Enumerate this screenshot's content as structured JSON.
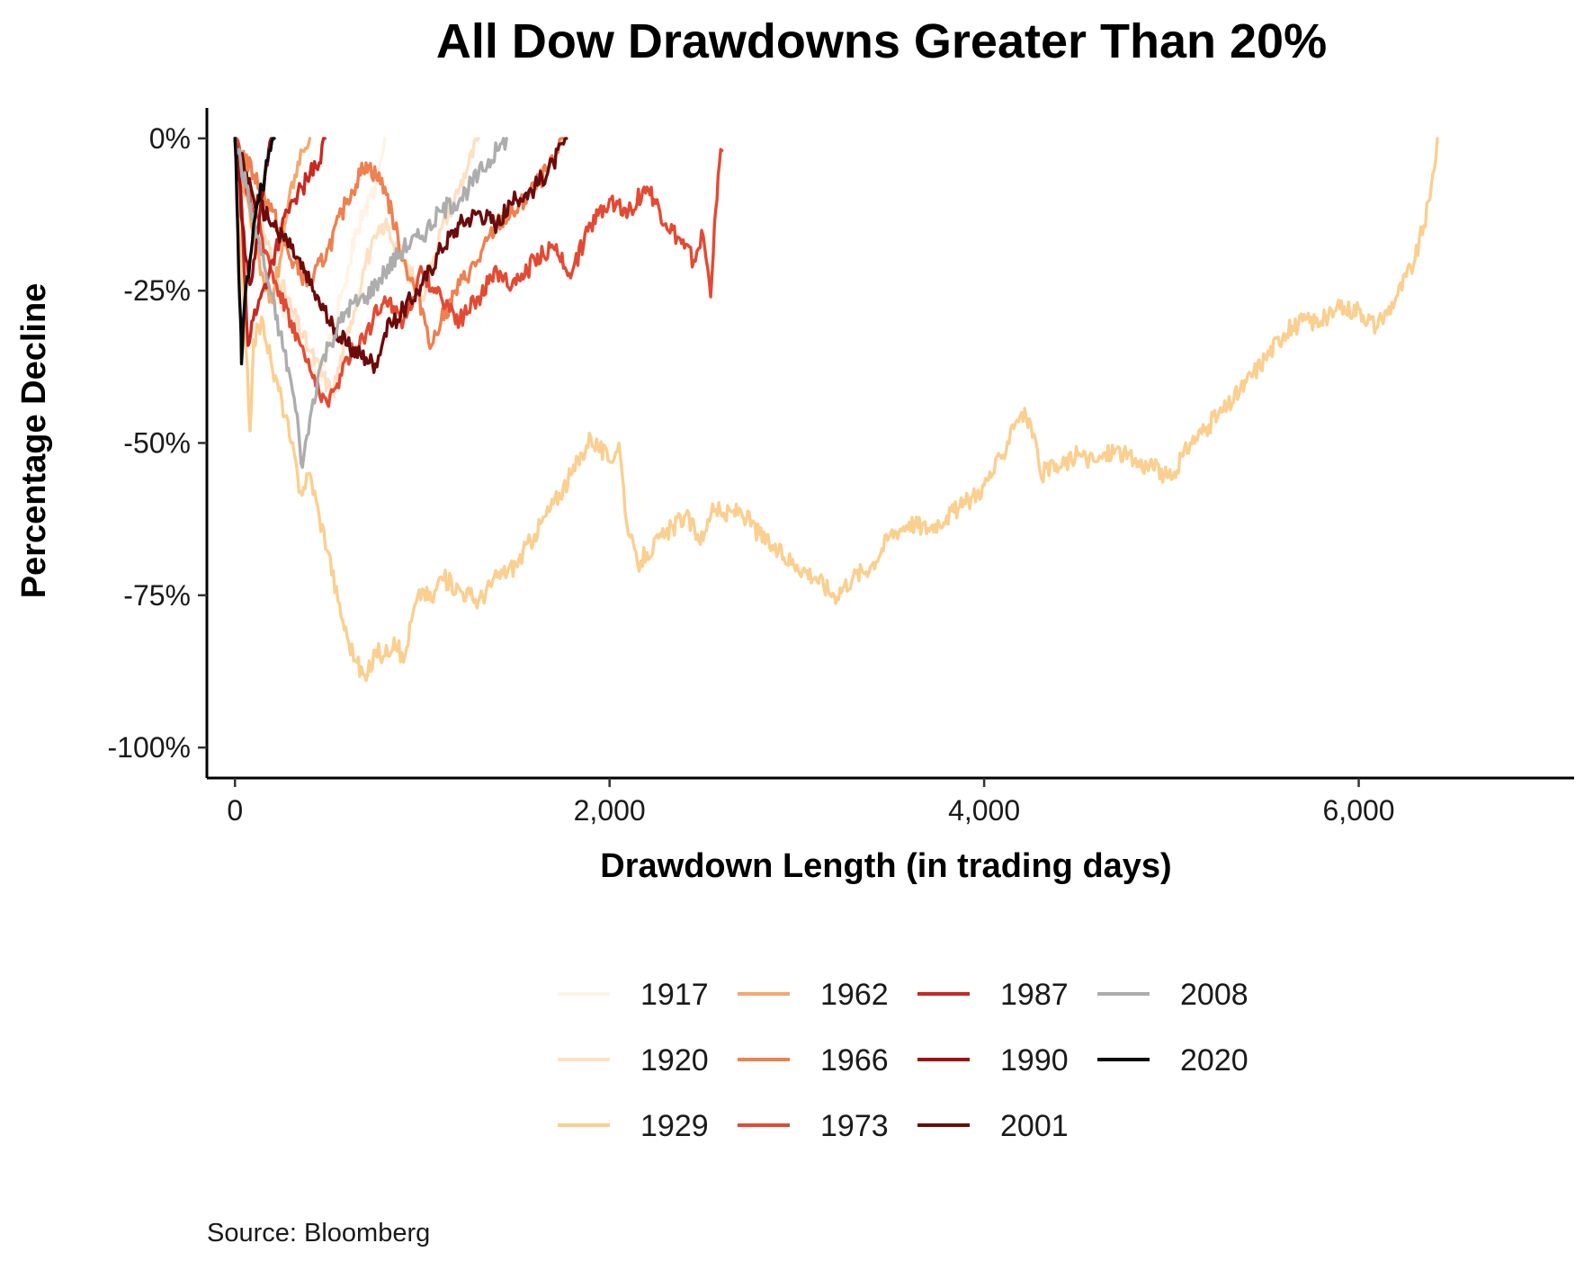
{
  "chart_data": {
    "type": "line",
    "title": "All Dow Drawdowns Greater Than 20%",
    "xlabel": "Drawdown Length (in trading days)",
    "ylabel": "Percentage Decline",
    "xlim": [
      -150,
      7150
    ],
    "ylim": [
      -105,
      5
    ],
    "x_ticks": [
      {
        "value": 0,
        "label": "0"
      },
      {
        "value": 2000,
        "label": "2,000"
      },
      {
        "value": 4000,
        "label": "4,000"
      },
      {
        "value": 6000,
        "label": "6,000"
      }
    ],
    "y_ticks": [
      {
        "value": 0,
        "label": "0%"
      },
      {
        "value": -25,
        "label": "-25%"
      },
      {
        "value": -50,
        "label": "-50%"
      },
      {
        "value": -75,
        "label": "-75%"
      },
      {
        "value": -100,
        "label": "-100%"
      }
    ],
    "legend_position": "bottom",
    "source": "Source:  Bloomberg",
    "series": [
      {
        "name": "1917",
        "color": "#fff3e6",
        "points": [
          [
            0,
            0
          ],
          [
            50,
            -10
          ],
          [
            150,
            -22
          ],
          [
            300,
            -30
          ],
          [
            450,
            -40
          ],
          [
            550,
            -28
          ],
          [
            650,
            -15
          ],
          [
            750,
            -8
          ],
          [
            800,
            0
          ]
        ]
      },
      {
        "name": "1920",
        "color": "#fde0c2",
        "points": [
          [
            0,
            0
          ],
          [
            80,
            -8
          ],
          [
            200,
            -20
          ],
          [
            300,
            -28
          ],
          [
            400,
            -35
          ],
          [
            520,
            -42
          ],
          [
            620,
            -30
          ],
          [
            700,
            -20
          ],
          [
            800,
            -14
          ],
          [
            900,
            -20
          ],
          [
            1000,
            -26
          ],
          [
            1100,
            -15
          ],
          [
            1200,
            -8
          ],
          [
            1300,
            0
          ]
        ]
      },
      {
        "name": "1929",
        "color": "#fbcf8f",
        "points": [
          [
            0,
            0
          ],
          [
            30,
            -18
          ],
          [
            60,
            -35
          ],
          [
            80,
            -48
          ],
          [
            100,
            -33
          ],
          [
            150,
            -30
          ],
          [
            200,
            -38
          ],
          [
            250,
            -43
          ],
          [
            300,
            -50
          ],
          [
            350,
            -58
          ],
          [
            400,
            -55
          ],
          [
            450,
            -62
          ],
          [
            500,
            -68
          ],
          [
            550,
            -76
          ],
          [
            600,
            -82
          ],
          [
            650,
            -86
          ],
          [
            700,
            -89
          ],
          [
            750,
            -84
          ],
          [
            800,
            -85
          ],
          [
            850,
            -82
          ],
          [
            900,
            -86
          ],
          [
            950,
            -78
          ],
          [
            1000,
            -74
          ],
          [
            1050,
            -76
          ],
          [
            1100,
            -72
          ],
          [
            1200,
            -74
          ],
          [
            1300,
            -76
          ],
          [
            1400,
            -72
          ],
          [
            1500,
            -70
          ],
          [
            1600,
            -65
          ],
          [
            1700,
            -60
          ],
          [
            1800,
            -55
          ],
          [
            1900,
            -49
          ],
          [
            2000,
            -53
          ],
          [
            2050,
            -50
          ],
          [
            2100,
            -65
          ],
          [
            2150,
            -70
          ],
          [
            2200,
            -68
          ],
          [
            2300,
            -65
          ],
          [
            2400,
            -62
          ],
          [
            2500,
            -66
          ],
          [
            2550,
            -60
          ],
          [
            2600,
            -62
          ],
          [
            2700,
            -61
          ],
          [
            2800,
            -65
          ],
          [
            2900,
            -68
          ],
          [
            3000,
            -70
          ],
          [
            3100,
            -72
          ],
          [
            3200,
            -75
          ],
          [
            3300,
            -72
          ],
          [
            3400,
            -70
          ],
          [
            3500,
            -65
          ],
          [
            3600,
            -63
          ],
          [
            3700,
            -64
          ],
          [
            3800,
            -62
          ],
          [
            3900,
            -60
          ],
          [
            4000,
            -57
          ],
          [
            4100,
            -52
          ],
          [
            4150,
            -47
          ],
          [
            4200,
            -45
          ],
          [
            4250,
            -47
          ],
          [
            4300,
            -55
          ],
          [
            4400,
            -54
          ],
          [
            4500,
            -52
          ],
          [
            4600,
            -53
          ],
          [
            4700,
            -51
          ],
          [
            4800,
            -53
          ],
          [
            4900,
            -54
          ],
          [
            5000,
            -56
          ],
          [
            5100,
            -50
          ],
          [
            5200,
            -47
          ],
          [
            5300,
            -44
          ],
          [
            5400,
            -40
          ],
          [
            5500,
            -36
          ],
          [
            5600,
            -32
          ],
          [
            5700,
            -30
          ],
          [
            5800,
            -30
          ],
          [
            5900,
            -28
          ],
          [
            6000,
            -28
          ],
          [
            6100,
            -31
          ],
          [
            6200,
            -26
          ],
          [
            6300,
            -20
          ],
          [
            6380,
            -10
          ],
          [
            6420,
            0
          ]
        ]
      },
      {
        "name": "1962",
        "color": "#f4a96c",
        "points": [
          [
            0,
            0
          ],
          [
            40,
            -6
          ],
          [
            80,
            -12
          ],
          [
            120,
            -18
          ],
          [
            160,
            -25
          ],
          [
            200,
            -27
          ],
          [
            240,
            -20
          ],
          [
            280,
            -12
          ],
          [
            320,
            -6
          ],
          [
            360,
            -2
          ],
          [
            400,
            0
          ]
        ]
      },
      {
        "name": "1966",
        "color": "#ef8050",
        "points": [
          [
            0,
            0
          ],
          [
            100,
            -6
          ],
          [
            200,
            -12
          ],
          [
            300,
            -20
          ],
          [
            400,
            -24
          ],
          [
            500,
            -18
          ],
          [
            600,
            -10
          ],
          [
            700,
            -4
          ],
          [
            800,
            -8
          ],
          [
            900,
            -20
          ],
          [
            1000,
            -28
          ],
          [
            1050,
            -34
          ],
          [
            1100,
            -30
          ],
          [
            1200,
            -24
          ],
          [
            1300,
            -20
          ],
          [
            1400,
            -14
          ],
          [
            1500,
            -12
          ],
          [
            1600,
            -8
          ],
          [
            1700,
            -4
          ],
          [
            1750,
            0
          ]
        ]
      },
      {
        "name": "1973",
        "color": "#e34a33",
        "points": [
          [
            0,
            0
          ],
          [
            100,
            -12
          ],
          [
            200,
            -22
          ],
          [
            300,
            -30
          ],
          [
            400,
            -38
          ],
          [
            500,
            -44
          ],
          [
            600,
            -36
          ],
          [
            700,
            -32
          ],
          [
            800,
            -26
          ],
          [
            900,
            -30
          ],
          [
            1000,
            -22
          ],
          [
            1100,
            -26
          ],
          [
            1200,
            -30
          ],
          [
            1300,
            -26
          ],
          [
            1400,
            -22
          ],
          [
            1500,
            -24
          ],
          [
            1600,
            -20
          ],
          [
            1700,
            -18
          ],
          [
            1800,
            -22
          ],
          [
            1900,
            -14
          ],
          [
            2000,
            -10
          ],
          [
            2100,
            -12
          ],
          [
            2200,
            -8
          ],
          [
            2300,
            -14
          ],
          [
            2400,
            -18
          ],
          [
            2450,
            -20
          ],
          [
            2500,
            -16
          ],
          [
            2540,
            -26
          ],
          [
            2560,
            -14
          ],
          [
            2580,
            -6
          ],
          [
            2600,
            -2
          ]
        ]
      },
      {
        "name": "1987",
        "color": "#c72a22",
        "points": [
          [
            0,
            0
          ],
          [
            30,
            -8
          ],
          [
            50,
            -22
          ],
          [
            70,
            -34
          ],
          [
            90,
            -30
          ],
          [
            120,
            -28
          ],
          [
            160,
            -24
          ],
          [
            200,
            -20
          ],
          [
            240,
            -16
          ],
          [
            280,
            -12
          ],
          [
            320,
            -10
          ],
          [
            360,
            -8
          ],
          [
            400,
            -6
          ],
          [
            450,
            -4
          ],
          [
            480,
            0
          ]
        ]
      },
      {
        "name": "1990",
        "color": "#9e1014",
        "points": [
          [
            0,
            0
          ],
          [
            20,
            -6
          ],
          [
            40,
            -14
          ],
          [
            60,
            -20
          ],
          [
            80,
            -24
          ],
          [
            100,
            -20
          ],
          [
            120,
            -16
          ],
          [
            140,
            -10
          ],
          [
            160,
            -6
          ],
          [
            180,
            -2
          ],
          [
            200,
            0
          ]
        ]
      },
      {
        "name": "2001",
        "color": "#6b0b0b",
        "points": [
          [
            0,
            0
          ],
          [
            100,
            -10
          ],
          [
            200,
            -14
          ],
          [
            300,
            -18
          ],
          [
            400,
            -24
          ],
          [
            500,
            -30
          ],
          [
            600,
            -34
          ],
          [
            700,
            -36
          ],
          [
            750,
            -37
          ],
          [
            800,
            -32
          ],
          [
            900,
            -28
          ],
          [
            1000,
            -24
          ],
          [
            1100,
            -18
          ],
          [
            1200,
            -14
          ],
          [
            1300,
            -12
          ],
          [
            1400,
            -14
          ],
          [
            1500,
            -10
          ],
          [
            1600,
            -8
          ],
          [
            1700,
            -4
          ],
          [
            1770,
            0
          ]
        ]
      },
      {
        "name": "2008",
        "color": "#adadad",
        "points": [
          [
            0,
            0
          ],
          [
            60,
            -8
          ],
          [
            120,
            -16
          ],
          [
            180,
            -24
          ],
          [
            240,
            -32
          ],
          [
            300,
            -40
          ],
          [
            340,
            -48
          ],
          [
            360,
            -54
          ],
          [
            400,
            -46
          ],
          [
            450,
            -38
          ],
          [
            500,
            -34
          ],
          [
            600,
            -28
          ],
          [
            700,
            -26
          ],
          [
            800,
            -22
          ],
          [
            900,
            -18
          ],
          [
            1000,
            -16
          ],
          [
            1100,
            -12
          ],
          [
            1200,
            -10
          ],
          [
            1300,
            -6
          ],
          [
            1400,
            -2
          ],
          [
            1450,
            0
          ]
        ]
      },
      {
        "name": "2020",
        "color": "#0a0a0a",
        "points": [
          [
            0,
            0
          ],
          [
            10,
            -10
          ],
          [
            20,
            -22
          ],
          [
            30,
            -30
          ],
          [
            35,
            -37
          ],
          [
            45,
            -30
          ],
          [
            60,
            -24
          ],
          [
            80,
            -20
          ],
          [
            100,
            -14
          ],
          [
            130,
            -10
          ],
          [
            160,
            -6
          ],
          [
            190,
            -2
          ],
          [
            210,
            0
          ]
        ]
      }
    ]
  }
}
